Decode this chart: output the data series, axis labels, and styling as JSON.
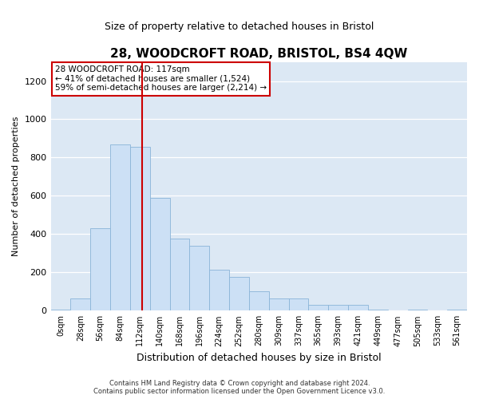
{
  "title": "28, WOODCROFT ROAD, BRISTOL, BS4 4QW",
  "subtitle": "Size of property relative to detached houses in Bristol",
  "xlabel": "Distribution of detached houses by size in Bristol",
  "ylabel": "Number of detached properties",
  "annotation_line1": "28 WOODCROFT ROAD: 117sqm",
  "annotation_line2": "← 41% of detached houses are smaller (1,524)",
  "annotation_line3": "59% of semi-detached houses are larger (2,214) →",
  "bar_color": "#cce0f5",
  "bar_edge_color": "#8ab4d8",
  "redline_color": "#cc0000",
  "bg_color": "#dce8f4",
  "categories": [
    "0sqm",
    "28sqm",
    "56sqm",
    "84sqm",
    "112sqm",
    "140sqm",
    "168sqm",
    "196sqm",
    "224sqm",
    "252sqm",
    "280sqm",
    "309sqm",
    "337sqm",
    "365sqm",
    "393sqm",
    "421sqm",
    "449sqm",
    "477sqm",
    "505sqm",
    "533sqm",
    "561sqm"
  ],
  "values": [
    5,
    62,
    430,
    870,
    855,
    590,
    375,
    340,
    215,
    175,
    100,
    65,
    65,
    30,
    30,
    30,
    5,
    0,
    5,
    0,
    5
  ],
  "ylim": [
    0,
    1300
  ],
  "yticks": [
    0,
    200,
    400,
    600,
    800,
    1000,
    1200
  ],
  "redline_x": 4.12,
  "footer_line1": "Contains HM Land Registry data © Crown copyright and database right 2024.",
  "footer_line2": "Contains public sector information licensed under the Open Government Licence v3.0."
}
